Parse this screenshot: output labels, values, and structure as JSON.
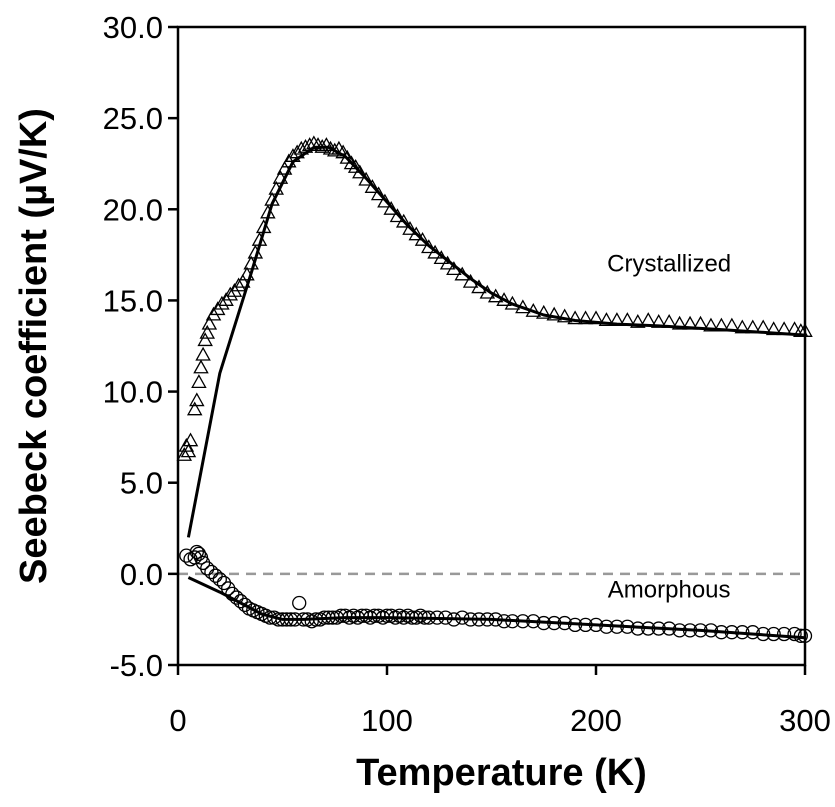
{
  "chart_data": {
    "type": "scatter",
    "xlabel": "Temperature (K)",
    "ylabel": "Seebeck coefficient (µV/K)",
    "xlim": [
      0,
      300
    ],
    "ylim": [
      -5,
      30
    ],
    "x_ticks": [
      "0",
      "100",
      "200",
      "300"
    ],
    "y_ticks": [
      "-5.0",
      "0.0",
      "5.0",
      "10.0",
      "15.0",
      "20.0",
      "25.0",
      "30.0"
    ],
    "grid": false,
    "legend": "none",
    "reference_line": {
      "y": 0,
      "style": "dashed",
      "color": "#999999"
    },
    "annotations": [
      {
        "text": "Crystallized",
        "x": 235,
        "y": 16.6
      },
      {
        "text": "Amorphous",
        "x": 235,
        "y": -1.3
      }
    ],
    "series": [
      {
        "marker": "triangle-open",
        "points": [
          [
            3,
            6.5
          ],
          [
            4,
            7.0
          ],
          [
            5,
            6.7
          ],
          [
            6,
            7.3
          ],
          [
            8,
            9.0
          ],
          [
            9,
            9.5
          ],
          [
            10,
            10.5
          ],
          [
            11,
            11.3
          ],
          [
            12,
            12.0
          ],
          [
            13,
            12.8
          ],
          [
            14,
            13.2
          ],
          [
            15,
            13.7
          ],
          [
            17,
            14.2
          ],
          [
            19,
            14.5
          ],
          [
            21,
            14.8
          ],
          [
            23,
            15.0
          ],
          [
            25,
            15.3
          ],
          [
            27,
            15.5
          ],
          [
            29,
            15.8
          ],
          [
            31,
            16.0
          ],
          [
            33,
            16.4
          ],
          [
            35,
            17.0
          ],
          [
            37,
            17.6
          ],
          [
            39,
            18.3
          ],
          [
            41,
            19.0
          ],
          [
            43,
            19.8
          ],
          [
            45,
            20.5
          ],
          [
            47,
            21.1
          ],
          [
            49,
            21.7
          ],
          [
            51,
            22.2
          ],
          [
            53,
            22.6
          ],
          [
            55,
            22.9
          ],
          [
            57,
            23.1
          ],
          [
            59,
            23.3
          ],
          [
            61,
            23.4
          ],
          [
            63,
            23.5
          ],
          [
            65,
            23.6
          ],
          [
            67,
            23.5
          ],
          [
            69,
            23.4
          ],
          [
            71,
            23.5
          ],
          [
            73,
            23.3
          ],
          [
            75,
            23.2
          ],
          [
            77,
            23.3
          ],
          [
            79,
            23.1
          ],
          [
            81,
            22.8
          ],
          [
            83,
            22.5
          ],
          [
            85,
            22.3
          ],
          [
            87,
            22.0
          ],
          [
            90,
            21.6
          ],
          [
            93,
            21.2
          ],
          [
            96,
            20.8
          ],
          [
            99,
            20.4
          ],
          [
            102,
            20.0
          ],
          [
            105,
            19.6
          ],
          [
            108,
            19.3
          ],
          [
            111,
            18.9
          ],
          [
            114,
            18.6
          ],
          [
            117,
            18.3
          ],
          [
            120,
            17.9
          ],
          [
            123,
            17.6
          ],
          [
            126,
            17.3
          ],
          [
            129,
            17.0
          ],
          [
            132,
            16.7
          ],
          [
            136,
            16.4
          ],
          [
            140,
            16.0
          ],
          [
            144,
            15.7
          ],
          [
            148,
            15.4
          ],
          [
            152,
            15.2
          ],
          [
            156,
            15.0
          ],
          [
            160,
            14.8
          ],
          [
            165,
            14.6
          ],
          [
            170,
            14.4
          ],
          [
            175,
            14.3
          ],
          [
            180,
            14.2
          ],
          [
            185,
            14.1
          ],
          [
            190,
            14.0
          ],
          [
            195,
            14.0
          ],
          [
            200,
            14.0
          ],
          [
            205,
            13.9
          ],
          [
            210,
            13.9
          ],
          [
            215,
            13.9
          ],
          [
            220,
            13.8
          ],
          [
            225,
            13.9
          ],
          [
            230,
            13.8
          ],
          [
            235,
            13.8
          ],
          [
            240,
            13.7
          ],
          [
            245,
            13.7
          ],
          [
            250,
            13.7
          ],
          [
            255,
            13.6
          ],
          [
            260,
            13.6
          ],
          [
            265,
            13.6
          ],
          [
            270,
            13.5
          ],
          [
            275,
            13.5
          ],
          [
            280,
            13.5
          ],
          [
            285,
            13.4
          ],
          [
            290,
            13.4
          ],
          [
            295,
            13.4
          ],
          [
            298,
            13.3
          ],
          [
            300,
            13.3
          ]
        ]
      },
      {
        "marker": "circle-open",
        "points": [
          [
            4,
            1.0
          ],
          [
            6,
            0.8
          ],
          [
            8,
            0.9
          ],
          [
            9,
            1.2
          ],
          [
            10,
            1.1
          ],
          [
            11,
            0.9
          ],
          [
            12,
            0.6
          ],
          [
            14,
            0.3
          ],
          [
            16,
            0.1
          ],
          [
            18,
            -0.1
          ],
          [
            20,
            -0.3
          ],
          [
            22,
            -0.5
          ],
          [
            24,
            -0.8
          ],
          [
            26,
            -1.1
          ],
          [
            28,
            -1.3
          ],
          [
            30,
            -1.5
          ],
          [
            32,
            -1.7
          ],
          [
            34,
            -1.9
          ],
          [
            36,
            -2.0
          ],
          [
            38,
            -2.1
          ],
          [
            40,
            -2.2
          ],
          [
            42,
            -2.3
          ],
          [
            44,
            -2.4
          ],
          [
            46,
            -2.4
          ],
          [
            48,
            -2.5
          ],
          [
            50,
            -2.5
          ],
          [
            52,
            -2.5
          ],
          [
            54,
            -2.5
          ],
          [
            56,
            -2.5
          ],
          [
            58,
            -1.6
          ],
          [
            60,
            -2.5
          ],
          [
            62,
            -2.5
          ],
          [
            64,
            -2.6
          ],
          [
            66,
            -2.5
          ],
          [
            68,
            -2.5
          ],
          [
            70,
            -2.4
          ],
          [
            72,
            -2.4
          ],
          [
            74,
            -2.4
          ],
          [
            76,
            -2.4
          ],
          [
            78,
            -2.3
          ],
          [
            80,
            -2.3
          ],
          [
            82,
            -2.4
          ],
          [
            84,
            -2.3
          ],
          [
            86,
            -2.4
          ],
          [
            88,
            -2.3
          ],
          [
            90,
            -2.3
          ],
          [
            92,
            -2.4
          ],
          [
            94,
            -2.3
          ],
          [
            96,
            -2.3
          ],
          [
            98,
            -2.4
          ],
          [
            100,
            -2.3
          ],
          [
            102,
            -2.3
          ],
          [
            104,
            -2.4
          ],
          [
            106,
            -2.3
          ],
          [
            108,
            -2.4
          ],
          [
            110,
            -2.3
          ],
          [
            112,
            -2.4
          ],
          [
            114,
            -2.4
          ],
          [
            116,
            -2.3
          ],
          [
            118,
            -2.4
          ],
          [
            120,
            -2.4
          ],
          [
            124,
            -2.4
          ],
          [
            128,
            -2.4
          ],
          [
            132,
            -2.5
          ],
          [
            136,
            -2.4
          ],
          [
            140,
            -2.5
          ],
          [
            144,
            -2.5
          ],
          [
            148,
            -2.5
          ],
          [
            152,
            -2.5
          ],
          [
            156,
            -2.6
          ],
          [
            160,
            -2.6
          ],
          [
            165,
            -2.6
          ],
          [
            170,
            -2.6
          ],
          [
            175,
            -2.7
          ],
          [
            180,
            -2.7
          ],
          [
            185,
            -2.7
          ],
          [
            190,
            -2.8
          ],
          [
            195,
            -2.8
          ],
          [
            200,
            -2.8
          ],
          [
            205,
            -2.9
          ],
          [
            210,
            -2.9
          ],
          [
            215,
            -2.9
          ],
          [
            220,
            -3.0
          ],
          [
            225,
            -3.0
          ],
          [
            230,
            -3.0
          ],
          [
            235,
            -3.0
          ],
          [
            240,
            -3.1
          ],
          [
            245,
            -3.1
          ],
          [
            250,
            -3.1
          ],
          [
            255,
            -3.1
          ],
          [
            260,
            -3.2
          ],
          [
            265,
            -3.2
          ],
          [
            270,
            -3.2
          ],
          [
            275,
            -3.2
          ],
          [
            280,
            -3.3
          ],
          [
            285,
            -3.3
          ],
          [
            290,
            -3.3
          ],
          [
            295,
            -3.3
          ],
          [
            298,
            -3.4
          ],
          [
            300,
            -3.4
          ]
        ]
      }
    ],
    "fit_lines": [
      {
        "points": [
          [
            5,
            2.0
          ],
          [
            20,
            11.0
          ],
          [
            35,
            16.5
          ],
          [
            45,
            20.3
          ],
          [
            55,
            22.6
          ],
          [
            65,
            23.4
          ],
          [
            72,
            23.4
          ],
          [
            80,
            22.9
          ],
          [
            90,
            21.7
          ],
          [
            100,
            20.4
          ],
          [
            110,
            19.1
          ],
          [
            120,
            18.0
          ],
          [
            130,
            17.1
          ],
          [
            140,
            16.2
          ],
          [
            150,
            15.4
          ],
          [
            160,
            14.8
          ],
          [
            175,
            14.2
          ],
          [
            190,
            13.9
          ],
          [
            210,
            13.7
          ],
          [
            230,
            13.6
          ],
          [
            260,
            13.4
          ],
          [
            300,
            13.1
          ]
        ]
      },
      {
        "points": [
          [
            5,
            -0.2
          ],
          [
            20,
            -1.0
          ],
          [
            30,
            -1.6
          ],
          [
            40,
            -2.2
          ],
          [
            50,
            -2.5
          ],
          [
            60,
            -2.5
          ],
          [
            80,
            -2.4
          ],
          [
            100,
            -2.4
          ],
          [
            150,
            -2.5
          ],
          [
            200,
            -2.8
          ],
          [
            250,
            -3.1
          ],
          [
            300,
            -3.5
          ]
        ]
      }
    ]
  }
}
